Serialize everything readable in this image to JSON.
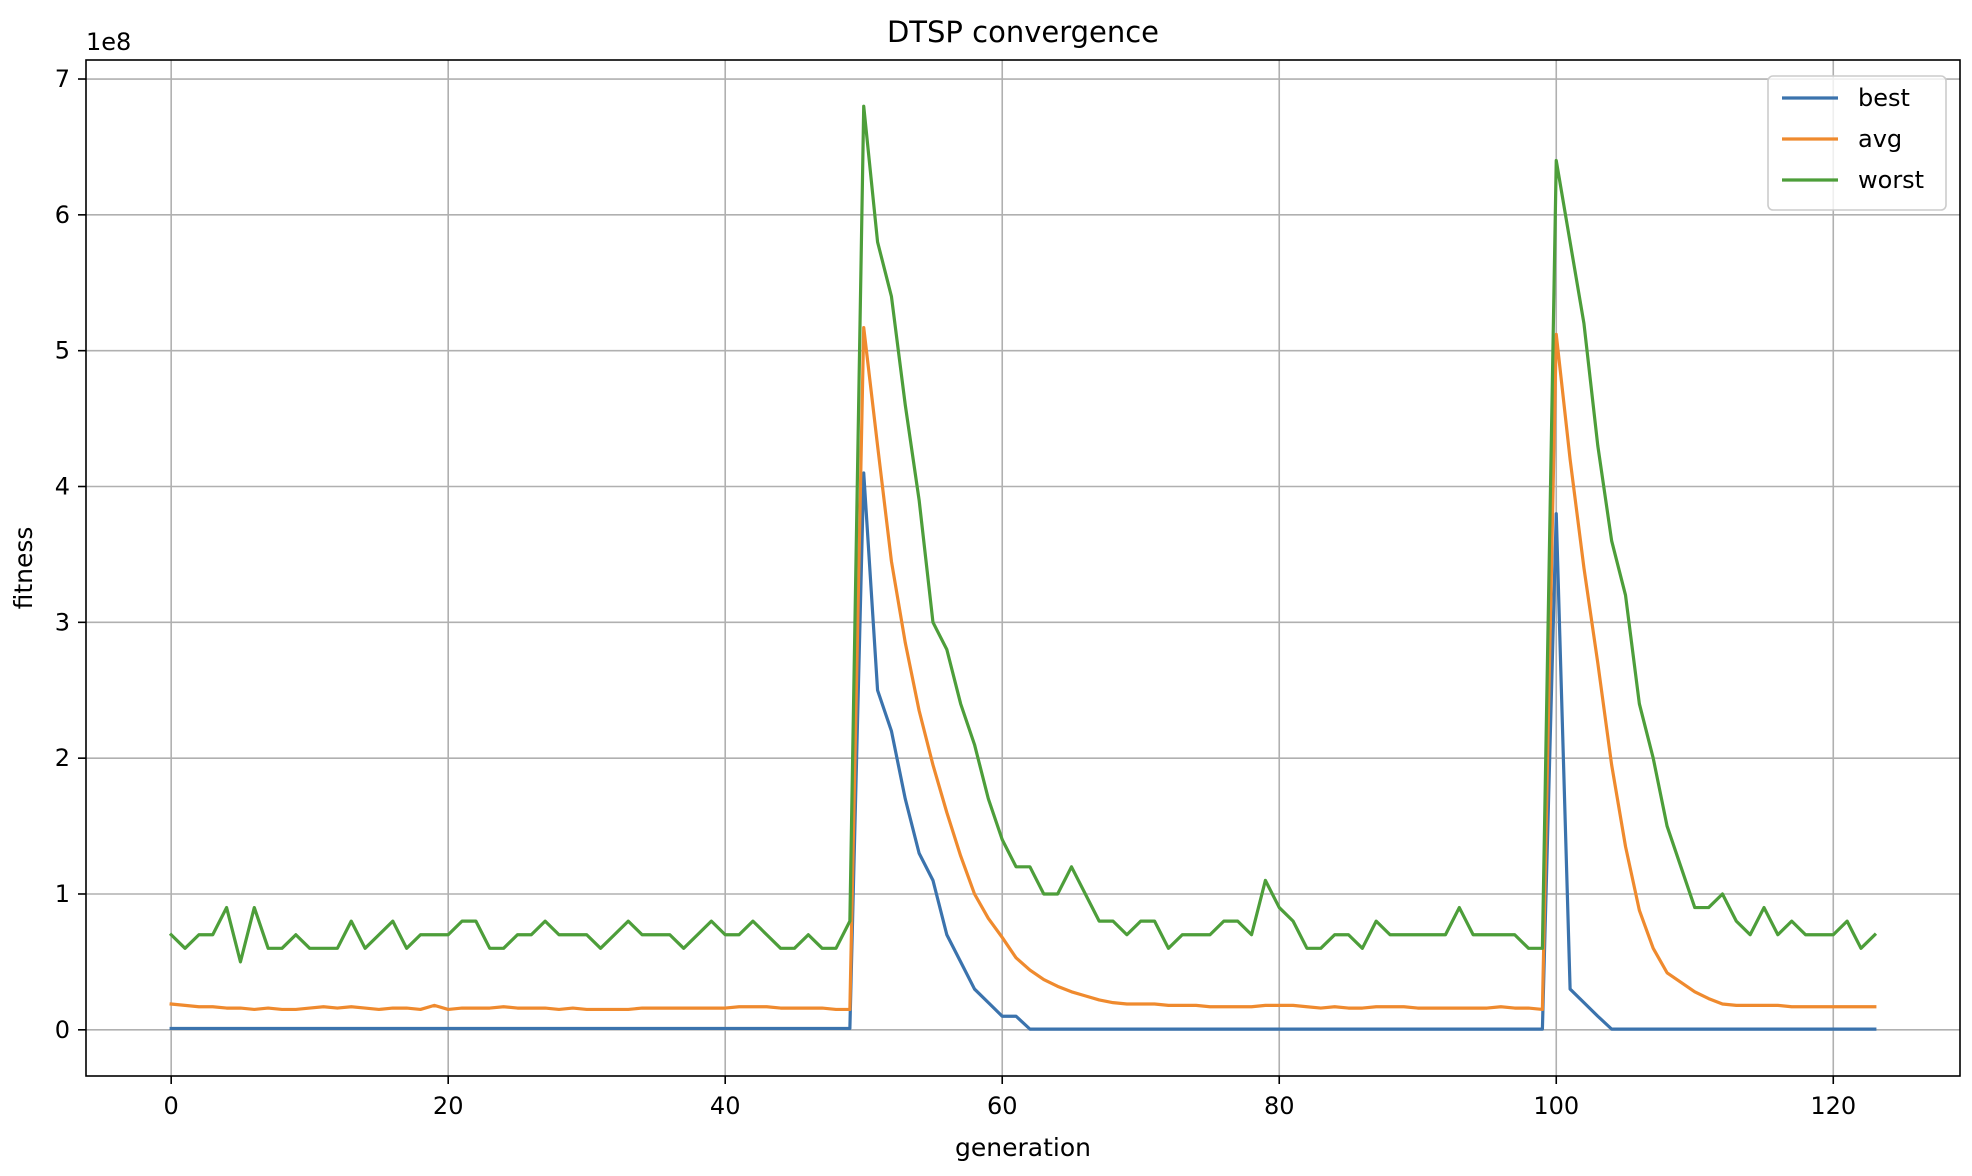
{
  "chart_data": {
    "type": "line",
    "title": "DTSP convergence",
    "xlabel": "generation",
    "ylabel": "fitness",
    "y_offset_text": "1e8",
    "xlim": [
      -6.15,
      129.15
    ],
    "ylim": [
      -0.34,
      7.14
    ],
    "xticks": [
      0,
      20,
      40,
      60,
      80,
      100,
      120
    ],
    "yticks": [
      0,
      1,
      2,
      3,
      4,
      5,
      6,
      7
    ],
    "grid": true,
    "legend_position": "top-right",
    "series": [
      {
        "name": "best",
        "color": "#3b73ad",
        "values": [
          0.01,
          0.01,
          0.01,
          0.01,
          0.01,
          0.01,
          0.01,
          0.01,
          0.01,
          0.01,
          0.01,
          0.01,
          0.01,
          0.01,
          0.01,
          0.01,
          0.01,
          0.01,
          0.01,
          0.01,
          0.01,
          0.01,
          0.01,
          0.01,
          0.01,
          0.01,
          0.01,
          0.01,
          0.01,
          0.01,
          0.01,
          0.01,
          0.01,
          0.01,
          0.01,
          0.01,
          0.01,
          0.01,
          0.01,
          0.01,
          0.01,
          0.01,
          0.01,
          0.01,
          0.01,
          0.01,
          0.01,
          0.01,
          0.01,
          0.01,
          4.1,
          2.5,
          2.2,
          1.7,
          1.3,
          1.1,
          0.7,
          0.5,
          0.3,
          0.2,
          0.1,
          0.1,
          0.005,
          0.005,
          0.005,
          0.005,
          0.005,
          0.005,
          0.005,
          0.005,
          0.005,
          0.005,
          0.005,
          0.005,
          0.005,
          0.005,
          0.005,
          0.005,
          0.005,
          0.005,
          0.005,
          0.005,
          0.005,
          0.005,
          0.005,
          0.005,
          0.005,
          0.005,
          0.005,
          0.005,
          0.005,
          0.005,
          0.005,
          0.005,
          0.005,
          0.005,
          0.005,
          0.005,
          0.005,
          0.005,
          3.8,
          0.3,
          0.2,
          0.1,
          0.005,
          0.005,
          0.005,
          0.005,
          0.005,
          0.005,
          0.005,
          0.005,
          0.005,
          0.005,
          0.005,
          0.005,
          0.005,
          0.005,
          0.005,
          0.005,
          0.005,
          0.005,
          0.005,
          0.005
        ]
      },
      {
        "name": "avg",
        "color": "#ef8a2e",
        "values": [
          0.19,
          0.18,
          0.17,
          0.17,
          0.16,
          0.16,
          0.15,
          0.16,
          0.15,
          0.15,
          0.16,
          0.17,
          0.16,
          0.17,
          0.16,
          0.15,
          0.16,
          0.16,
          0.15,
          0.18,
          0.15,
          0.16,
          0.16,
          0.16,
          0.17,
          0.16,
          0.16,
          0.16,
          0.15,
          0.16,
          0.15,
          0.15,
          0.15,
          0.15,
          0.16,
          0.16,
          0.16,
          0.16,
          0.16,
          0.16,
          0.16,
          0.17,
          0.17,
          0.17,
          0.16,
          0.16,
          0.16,
          0.16,
          0.15,
          0.15,
          5.17,
          4.3,
          3.45,
          2.85,
          2.35,
          1.95,
          1.6,
          1.28,
          1.0,
          0.82,
          0.68,
          0.53,
          0.44,
          0.37,
          0.32,
          0.28,
          0.25,
          0.22,
          0.2,
          0.19,
          0.19,
          0.19,
          0.18,
          0.18,
          0.18,
          0.17,
          0.17,
          0.17,
          0.17,
          0.18,
          0.18,
          0.18,
          0.17,
          0.16,
          0.17,
          0.16,
          0.16,
          0.17,
          0.17,
          0.17,
          0.16,
          0.16,
          0.16,
          0.16,
          0.16,
          0.16,
          0.17,
          0.16,
          0.16,
          0.15,
          5.12,
          4.2,
          3.4,
          2.7,
          1.95,
          1.35,
          0.88,
          0.6,
          0.42,
          0.35,
          0.28,
          0.23,
          0.19,
          0.18,
          0.18,
          0.18,
          0.18,
          0.17,
          0.17,
          0.17,
          0.17,
          0.17,
          0.17,
          0.17
        ]
      },
      {
        "name": "worst",
        "color": "#4d9e3a",
        "values": [
          0.7,
          0.6,
          0.7,
          0.7,
          0.9,
          0.5,
          0.9,
          0.6,
          0.6,
          0.7,
          0.6,
          0.6,
          0.6,
          0.8,
          0.6,
          0.7,
          0.8,
          0.6,
          0.7,
          0.7,
          0.7,
          0.8,
          0.8,
          0.6,
          0.6,
          0.7,
          0.7,
          0.8,
          0.7,
          0.7,
          0.7,
          0.6,
          0.7,
          0.8,
          0.7,
          0.7,
          0.7,
          0.6,
          0.7,
          0.8,
          0.7,
          0.7,
          0.8,
          0.7,
          0.6,
          0.6,
          0.7,
          0.6,
          0.6,
          0.8,
          6.8,
          5.8,
          5.4,
          4.6,
          3.9,
          3.0,
          2.8,
          2.4,
          2.1,
          1.7,
          1.4,
          1.2,
          1.2,
          1.0,
          1.0,
          1.2,
          1.0,
          0.8,
          0.8,
          0.7,
          0.8,
          0.8,
          0.6,
          0.7,
          0.7,
          0.7,
          0.8,
          0.8,
          0.7,
          1.1,
          0.9,
          0.8,
          0.6,
          0.6,
          0.7,
          0.7,
          0.6,
          0.8,
          0.7,
          0.7,
          0.7,
          0.7,
          0.7,
          0.9,
          0.7,
          0.7,
          0.7,
          0.7,
          0.6,
          0.6,
          6.4,
          5.8,
          5.2,
          4.3,
          3.6,
          3.2,
          2.4,
          2.0,
          1.5,
          1.2,
          0.9,
          0.9,
          1.0,
          0.8,
          0.7,
          0.9,
          0.7,
          0.8,
          0.7,
          0.7,
          0.7,
          0.8,
          0.6,
          0.7
        ]
      }
    ]
  }
}
